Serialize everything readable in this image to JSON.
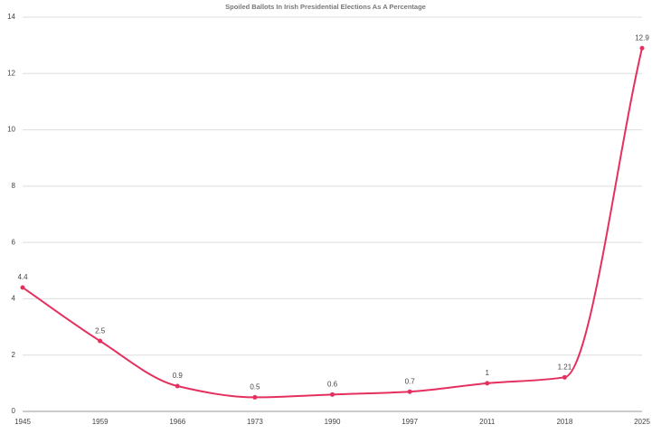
{
  "chart_data": {
    "type": "line",
    "title": "Spoiled Ballots In Irish Presidential Elections As A Percentage",
    "categories": [
      "1945",
      "1959",
      "1966",
      "1973",
      "1990",
      "1997",
      "2011",
      "2018",
      "2025"
    ],
    "series": [
      {
        "name": "Spoiled Ballots",
        "color": "#e5305f",
        "values": [
          4.4,
          2.5,
          0.9,
          0.5,
          0.6,
          0.7,
          1,
          1.21,
          12.9
        ]
      }
    ],
    "ylim": [
      0,
      14
    ],
    "yticks": [
      0,
      2,
      4,
      6,
      8,
      10,
      12,
      14
    ],
    "grid": true
  }
}
